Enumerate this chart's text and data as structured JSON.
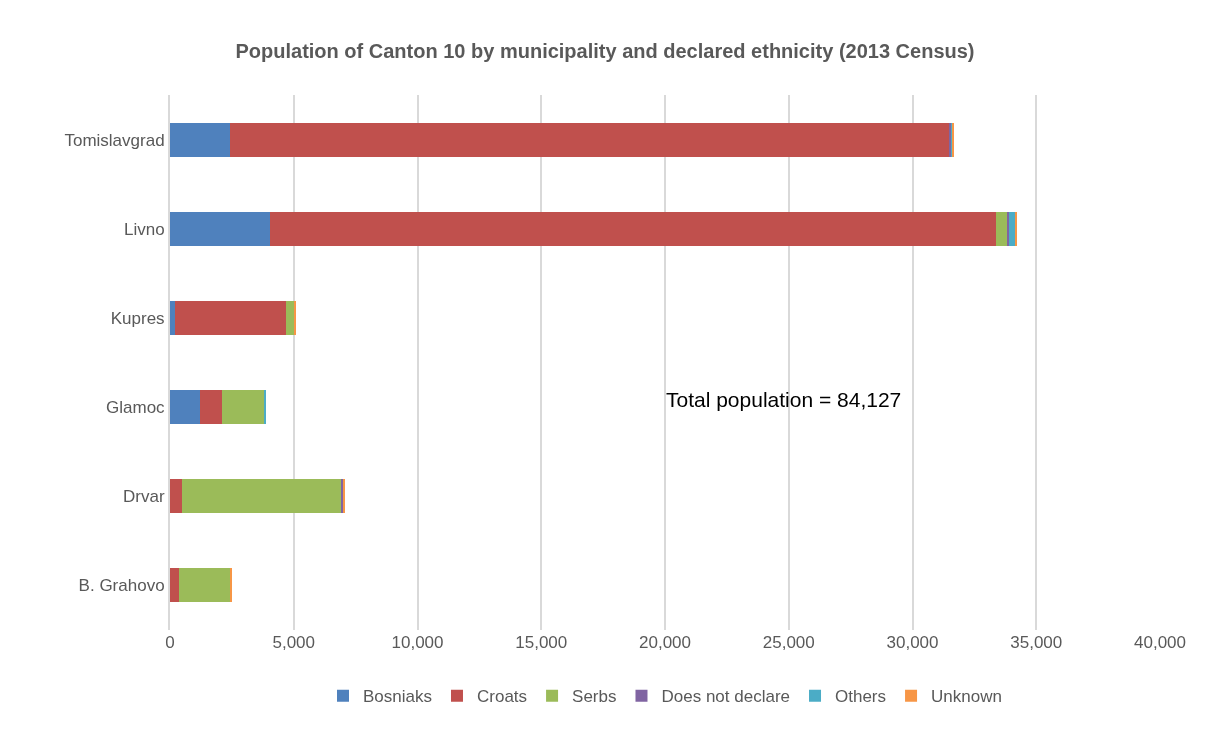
{
  "chart_data": {
    "type": "bar",
    "orientation": "horizontal",
    "stacked": true,
    "title": "Population of Canton 10 by municipality and declared ethnicity (2013 Census)",
    "categories": [
      "Tomislavgrad",
      "Livno",
      "Kupres",
      "Glamoc",
      "Drvar",
      "B. Grahovo"
    ],
    "series": [
      {
        "name": "Bosniaks",
        "color": "#4f81bd",
        "values": [
          2420,
          4030,
          200,
          1210,
          0,
          0
        ]
      },
      {
        "name": "Croats",
        "color": "#c0504d",
        "values": [
          29080,
          29330,
          4480,
          900,
          500,
          360
        ]
      },
      {
        "name": "Serbs",
        "color": "#9bbb59",
        "values": [
          0,
          450,
          370,
          1710,
          6440,
          2080
        ]
      },
      {
        "name": "Does not declare",
        "color": "#8064a2",
        "values": [
          60,
          100,
          0,
          0,
          50,
          0
        ]
      },
      {
        "name": "Others",
        "color": "#4bacc6",
        "values": [
          60,
          270,
          0,
          60,
          0,
          0
        ]
      },
      {
        "name": "Unknown",
        "color": "#f79646",
        "values": [
          20,
          50,
          50,
          0,
          50,
          40
        ]
      }
    ],
    "xlim": [
      0,
      40000
    ],
    "xticks": [
      {
        "value": 0,
        "label": "0"
      },
      {
        "value": 5000,
        "label": "5,000"
      },
      {
        "value": 10000,
        "label": "10,000"
      },
      {
        "value": 15000,
        "label": "15,000"
      },
      {
        "value": 20000,
        "label": "20,000"
      },
      {
        "value": 25000,
        "label": "25,000"
      },
      {
        "value": 30000,
        "label": "30,000"
      },
      {
        "value": 35000,
        "label": "35,000"
      },
      {
        "value": 40000,
        "label": "40,000"
      }
    ],
    "grid": "x",
    "legend": "bottom",
    "annotations": [
      "Total population = 84,127"
    ]
  }
}
